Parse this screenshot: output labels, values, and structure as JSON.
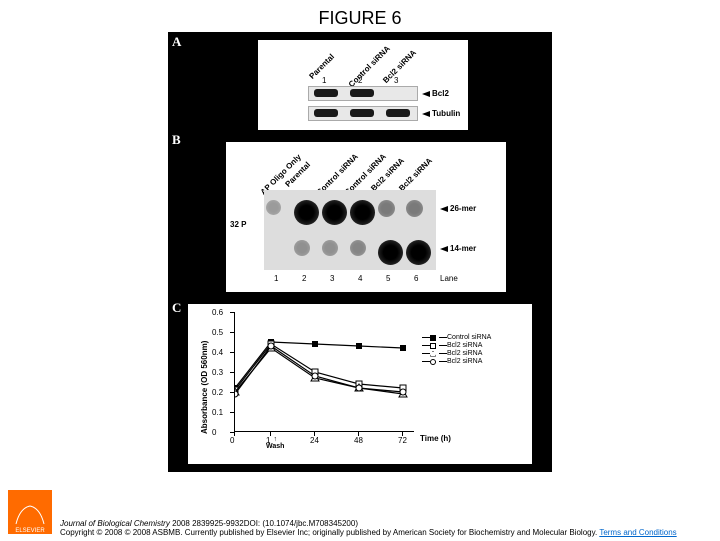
{
  "title": "FIGURE 6",
  "panelA": {
    "letter": "A",
    "labels": [
      "Parental",
      "Control siRNA",
      "Bcl2 siRNA"
    ],
    "laneNums": [
      "1",
      "2",
      "3"
    ],
    "row1": {
      "bands": [
        true,
        true,
        false
      ],
      "label": "Bcl2"
    },
    "row2": {
      "bands": [
        true,
        true,
        true
      ],
      "label": "Tubulin"
    }
  },
  "panelB": {
    "letter": "B",
    "labels": [
      "AP Oligo Only",
      "Parental",
      "Control siRNA",
      "Control siRNA",
      "Bcl2 siRNA",
      "Bcl2 siRNA"
    ],
    "sideLabel": "32 P",
    "laneNums": [
      "1",
      "2",
      "3",
      "4",
      "5",
      "6"
    ],
    "laneWord": "Lane",
    "arrow26": "26-mer",
    "arrow14": "14-mer",
    "topBlots": [
      0.1,
      0.95,
      0.95,
      0.9,
      0.25,
      0.25
    ],
    "botBlots": [
      0.0,
      0.15,
      0.15,
      0.2,
      0.95,
      0.95
    ]
  },
  "panelC": {
    "letter": "C",
    "yLabel": "Absorbance (OD 560nm)",
    "xLabel": "Time (h)",
    "washLabel": "Wash",
    "yTicks": [
      "0",
      "0.1",
      "0.2",
      "0.3",
      "0.4",
      "0.5",
      "0.6"
    ],
    "xTicks": [
      "0",
      "1",
      "24",
      "48",
      "72"
    ],
    "ylim": [
      0,
      0.6
    ],
    "series": [
      {
        "name": "Control siRNA",
        "marker": "square-filled",
        "values": [
          0.22,
          0.45,
          0.44,
          0.43,
          0.42
        ]
      },
      {
        "name": "Bcl2 siRNA",
        "marker": "square-open",
        "values": [
          0.21,
          0.44,
          0.3,
          0.24,
          0.22
        ]
      },
      {
        "name": "Bcl2 siRNA",
        "marker": "triangle-open",
        "values": [
          0.2,
          0.42,
          0.27,
          0.22,
          0.19
        ]
      },
      {
        "name": "Bcl2 siRNA",
        "marker": "circle-open",
        "values": [
          0.19,
          0.43,
          0.28,
          0.22,
          0.2
        ]
      }
    ],
    "colors": {
      "line": "#000000",
      "bg": "#ffffff"
    }
  },
  "footer": {
    "journal": "Journal of Biological Chemistry",
    "cite": "2008 2839925-9932DOI: (10.1074/jbc.M708345200)",
    "copy": "Copyright © 2008 © 2008 ASBMB. Currently published by Elsevier Inc; originally published by American Society for Biochemistry and Molecular Biology.",
    "link": "Terms and Conditions"
  }
}
